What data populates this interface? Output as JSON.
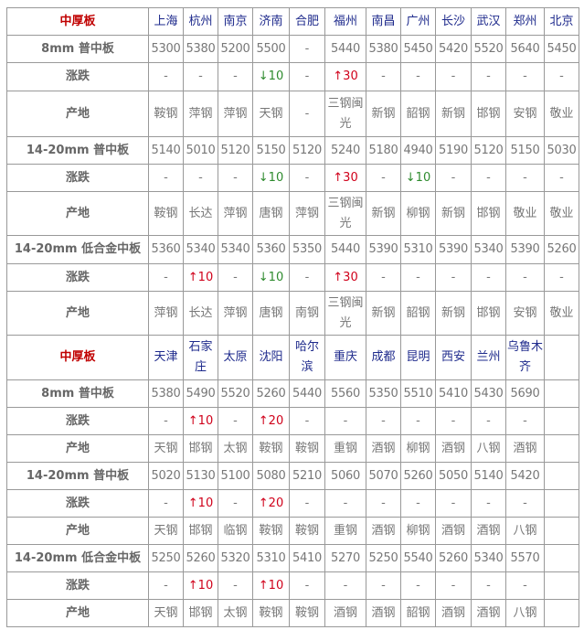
{
  "sections": [
    {
      "corner_label": "中厚板",
      "cities": [
        "上海",
        "杭州",
        "南京",
        "济南",
        "合肥",
        "福州",
        "南昌",
        "广州",
        "长沙",
        "武汉",
        "郑州",
        "北京"
      ],
      "rows": [
        {
          "label": "8mm 普中板",
          "cells": [
            "5300",
            "5380",
            "5200",
            "5500",
            "-",
            "5440",
            "5380",
            "5450",
            "5420",
            "5520",
            "5640",
            "5450"
          ]
        },
        {
          "label": "涨跌",
          "cells": [
            "-",
            "-",
            "-",
            "↓10",
            "-",
            "↑30",
            "-",
            "-",
            "-",
            "-",
            "-",
            "-"
          ]
        },
        {
          "label": "产地",
          "cells": [
            "鞍钢",
            "萍钢",
            "萍钢",
            "天钢",
            "-",
            "三钢闽光",
            "新钢",
            "韶钢",
            "新钢",
            "邯钢",
            "安钢",
            "敬业"
          ]
        },
        {
          "label": "14-20mm 普中板",
          "cells": [
            "5140",
            "5010",
            "5120",
            "5150",
            "5120",
            "5240",
            "5180",
            "4940",
            "5190",
            "5120",
            "5150",
            "5030"
          ]
        },
        {
          "label": "涨跌",
          "cells": [
            "-",
            "-",
            "-",
            "↓10",
            "-",
            "↑30",
            "-",
            "↓10",
            "-",
            "-",
            "-",
            "-"
          ]
        },
        {
          "label": "产地",
          "cells": [
            "鞍钢",
            "长达",
            "萍钢",
            "唐钢",
            "萍钢",
            "三钢闽光",
            "新钢",
            "柳钢",
            "新钢",
            "邯钢",
            "敬业",
            "敬业"
          ]
        },
        {
          "label": "14-20mm 低合金中板",
          "cells": [
            "5360",
            "5340",
            "5340",
            "5360",
            "5350",
            "5440",
            "5390",
            "5310",
            "5390",
            "5340",
            "5390",
            "5260"
          ]
        },
        {
          "label": "涨跌",
          "cells": [
            "-",
            "↑10",
            "-",
            "↓10",
            "-",
            "↑30",
            "-",
            "-",
            "-",
            "-",
            "-",
            "-"
          ]
        },
        {
          "label": "产地",
          "cells": [
            "萍钢",
            "长达",
            "萍钢",
            "唐钢",
            "南钢",
            "三钢闽光",
            "新钢",
            "韶钢",
            "新钢",
            "邯钢",
            "安钢",
            "敬业"
          ]
        }
      ]
    },
    {
      "corner_label": "中厚板",
      "cities": [
        "天津",
        "石家庄",
        "太原",
        "沈阳",
        "哈尔滨",
        "重庆",
        "成都",
        "昆明",
        "西安",
        "兰州",
        "乌鲁木齐",
        ""
      ],
      "rows": [
        {
          "label": "8mm 普中板",
          "cells": [
            "5380",
            "5490",
            "5520",
            "5260",
            "5440",
            "5560",
            "5350",
            "5510",
            "5410",
            "5430",
            "5690",
            ""
          ]
        },
        {
          "label": "涨跌",
          "cells": [
            "-",
            "↑10",
            "-",
            "↑20",
            "-",
            "-",
            "-",
            "-",
            "-",
            "-",
            "-",
            ""
          ]
        },
        {
          "label": "产地",
          "cells": [
            "天钢",
            "邯钢",
            "太钢",
            "鞍钢",
            "鞍钢",
            "重钢",
            "酒钢",
            "柳钢",
            "酒钢",
            "八钢",
            "酒钢",
            ""
          ]
        },
        {
          "label": "14-20mm 普中板",
          "cells": [
            "5020",
            "5130",
            "5100",
            "5080",
            "5210",
            "5060",
            "5070",
            "5260",
            "5050",
            "5140",
            "5420",
            ""
          ]
        },
        {
          "label": "涨跌",
          "cells": [
            "-",
            "↑10",
            "-",
            "↑20",
            "-",
            "-",
            "-",
            "-",
            "-",
            "-",
            "-",
            ""
          ]
        },
        {
          "label": "产地",
          "cells": [
            "天钢",
            "邯钢",
            "临钢",
            "鞍钢",
            "鞍钢",
            "重钢",
            "酒钢",
            "柳钢",
            "酒钢",
            "酒钢",
            "八钢",
            ""
          ]
        },
        {
          "label": "14-20mm 低合金中板",
          "cells": [
            "5250",
            "5260",
            "5320",
            "5310",
            "5410",
            "5270",
            "5250",
            "5540",
            "5260",
            "5340",
            "5570",
            ""
          ]
        },
        {
          "label": "涨跌",
          "cells": [
            "-",
            "↑10",
            "-",
            "↑10",
            "-",
            "-",
            "-",
            "-",
            "-",
            "-",
            "-",
            ""
          ]
        },
        {
          "label": "产地",
          "cells": [
            "天钢",
            "邯钢",
            "太钢",
            "鞍钢",
            "鞍钢",
            "酒钢",
            "酒钢",
            "韶钢",
            "酒钢",
            "酒钢",
            "八钢",
            ""
          ]
        }
      ]
    }
  ],
  "colors": {
    "corner": "#c00000",
    "city": "#1e2a8c",
    "up": "#d0021b",
    "down": "#2e8b2e",
    "text": "#777777"
  }
}
